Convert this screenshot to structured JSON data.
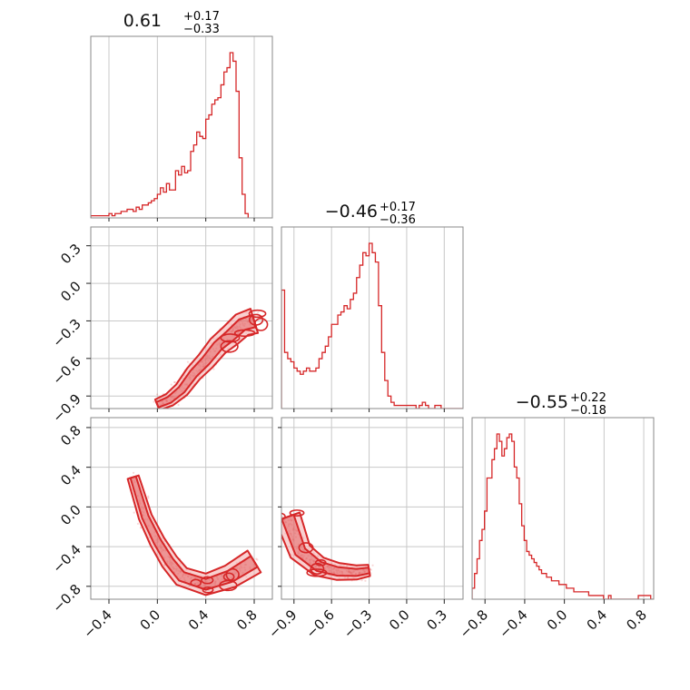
{
  "chart_data": {
    "type": "corner",
    "color": "#d62728",
    "fill_color": "#f4a9a9",
    "grid": true,
    "parameters": [
      {
        "title_median": "0.61",
        "title_plus": "+0.17",
        "title_minus": "−0.33",
        "range": [
          -0.55,
          0.95
        ]
      },
      {
        "title_median": "−0.46",
        "title_plus": "+0.17",
        "title_minus": "−0.36",
        "range": [
          -1.0,
          0.45
        ]
      },
      {
        "title_median": "−0.55",
        "title_plus": "+0.22",
        "title_minus": "−0.18",
        "range": [
          -0.93,
          0.9
        ]
      }
    ],
    "tick_labels": {
      "x0": [
        {
          "v": -0.4,
          "label": "−0.4"
        },
        {
          "v": 0.0,
          "label": "0.0"
        },
        {
          "v": 0.4,
          "label": "0.4"
        },
        {
          "v": 0.8,
          "label": "0.8"
        }
      ],
      "x1": [
        {
          "v": -0.9,
          "label": "−0.9"
        },
        {
          "v": -0.6,
          "label": "−0.6"
        },
        {
          "v": -0.3,
          "label": "−0.3"
        },
        {
          "v": 0.0,
          "label": "0.0"
        },
        {
          "v": 0.3,
          "label": "0.3"
        }
      ],
      "x2": [
        {
          "v": -0.8,
          "label": "−0.8"
        },
        {
          "v": -0.4,
          "label": "−0.4"
        },
        {
          "v": 0.0,
          "label": "0.0"
        },
        {
          "v": 0.4,
          "label": "0.4"
        },
        {
          "v": 0.8,
          "label": "0.8"
        }
      ],
      "y1": [
        {
          "v": 0.3,
          "label": "0.3"
        },
        {
          "v": 0.0,
          "label": "0.0"
        },
        {
          "v": -0.3,
          "label": "−0.3"
        },
        {
          "v": -0.6,
          "label": "−0.6"
        },
        {
          "v": -0.9,
          "label": "−0.9"
        }
      ],
      "y2": [
        {
          "v": 0.8,
          "label": "0.8"
        },
        {
          "v": 0.4,
          "label": "0.4"
        },
        {
          "v": 0.0,
          "label": "0.0"
        },
        {
          "v": -0.4,
          "label": "−0.4"
        },
        {
          "v": -0.8,
          "label": "−0.8"
        }
      ]
    },
    "histograms": [
      {
        "param": 0,
        "bin_start": -0.55,
        "bin_width": 0.025,
        "counts": [
          1,
          1,
          1,
          1,
          1,
          1,
          2,
          1,
          2,
          2,
          3,
          3,
          4,
          4,
          3,
          5,
          4,
          6,
          6,
          7,
          8,
          9,
          11,
          14,
          12,
          16,
          13,
          13,
          22,
          20,
          24,
          21,
          22,
          31,
          34,
          40,
          38,
          37,
          46,
          48,
          53,
          55,
          56,
          62,
          68,
          70,
          77,
          73,
          59,
          28,
          11,
          2
        ]
      },
      {
        "param": 1,
        "bin_start": -1.0,
        "bin_width": 0.025,
        "counts": [
          38,
          18,
          16,
          15,
          13,
          12,
          11,
          12,
          13,
          12,
          12,
          13,
          16,
          18,
          20,
          23,
          27,
          27,
          30,
          31,
          33,
          32,
          35,
          37,
          42,
          46,
          50,
          49,
          53,
          50,
          47,
          33,
          18,
          9,
          4,
          2,
          1,
          1,
          1,
          1,
          1,
          1,
          1,
          0,
          1,
          2,
          1,
          0,
          0,
          1,
          1,
          0,
          0,
          0,
          0,
          0,
          0,
          0
        ]
      },
      {
        "param": 2,
        "bin_start": -0.93,
        "bin_width": 0.025,
        "counts": [
          3,
          7,
          11,
          16,
          19,
          24,
          33,
          33,
          38,
          41,
          45,
          43,
          39,
          41,
          44,
          45,
          43,
          36,
          33,
          26,
          20,
          16,
          13,
          12,
          11,
          10,
          9,
          8,
          7,
          7,
          6,
          6,
          5,
          5,
          5,
          4,
          4,
          4,
          3,
          3,
          3,
          2,
          2,
          2,
          2,
          2,
          2,
          1,
          1,
          1,
          1,
          1,
          1,
          0,
          0,
          1,
          0,
          0,
          0,
          0,
          0,
          0,
          0,
          0,
          0,
          0,
          0,
          1,
          1,
          1,
          1,
          1,
          0
        ]
      }
    ],
    "densities_2d": [
      {
        "x_param": 0,
        "y_param": 1,
        "description_points": [
          [
            0.8,
            -0.3
          ],
          [
            0.7,
            -0.33
          ],
          [
            0.6,
            -0.42
          ],
          [
            0.5,
            -0.5
          ],
          [
            0.4,
            -0.62
          ],
          [
            0.3,
            -0.72
          ],
          [
            0.2,
            -0.85
          ],
          [
            0.1,
            -0.93
          ],
          [
            0.0,
            -0.97
          ]
        ]
      },
      {
        "x_param": 0,
        "y_param": 2,
        "description_points": [
          [
            0.8,
            -0.55
          ],
          [
            0.6,
            -0.7
          ],
          [
            0.4,
            -0.78
          ],
          [
            0.2,
            -0.7
          ],
          [
            0.1,
            -0.55
          ],
          [
            0.0,
            -0.35
          ],
          [
            -0.1,
            -0.1
          ],
          [
            -0.2,
            0.3
          ]
        ]
      },
      {
        "x_param": 1,
        "y_param": 2,
        "description_points": [
          [
            -0.95,
            -0.1
          ],
          [
            -0.85,
            -0.45
          ],
          [
            -0.7,
            -0.6
          ],
          [
            -0.55,
            -0.65
          ],
          [
            -0.4,
            -0.66
          ],
          [
            -0.3,
            -0.64
          ]
        ]
      }
    ]
  }
}
